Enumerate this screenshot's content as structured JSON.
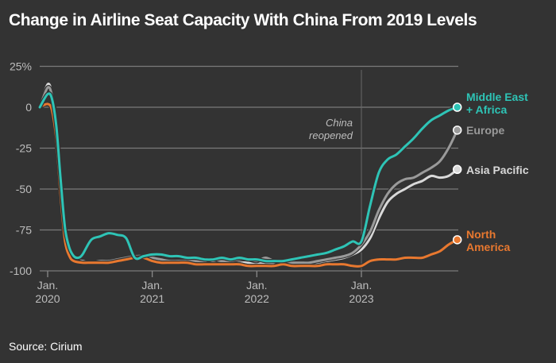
{
  "title": "Change in Airline Seat Capacity With China From 2019 Levels",
  "source": "Source: Cirium",
  "chart_data": {
    "type": "line",
    "title": "Change in Airline Seat Capacity With China From 2019 Levels",
    "xlabel": "",
    "ylabel": "",
    "x_unit": "months since Jan. 2020",
    "xlim": [
      -0.9,
      47
    ],
    "ylim": [
      -100,
      25
    ],
    "grid": true,
    "y_ticks": [
      {
        "value": 25,
        "label": "25%"
      },
      {
        "value": 0,
        "label": "0"
      },
      {
        "value": -25,
        "label": "-25"
      },
      {
        "value": -50,
        "label": "-50"
      },
      {
        "value": -75,
        "label": "-75"
      },
      {
        "value": -100,
        "label": "-100"
      }
    ],
    "x_ticks": [
      {
        "value": 0,
        "line1": "Jan.",
        "line2": "2020"
      },
      {
        "value": 12,
        "line1": "Jan.",
        "line2": "2021"
      },
      {
        "value": 24,
        "line1": "Jan.",
        "line2": "2022"
      },
      {
        "value": 36,
        "line1": "Jan.",
        "line2": "2023"
      }
    ],
    "annotations": [
      {
        "x": 36,
        "line1": "China",
        "line2": "reopened"
      }
    ],
    "legend": "direct-labels-right",
    "series": [
      {
        "name": "Asia Pacific",
        "label_lines": [
          "Asia Pacific"
        ],
        "color": "#d9d9d9",
        "points": [
          [
            -0.9,
            0
          ],
          [
            0,
            14
          ],
          [
            0.5,
            8
          ],
          [
            1,
            -10
          ],
          [
            1.5,
            -45
          ],
          [
            2,
            -75
          ],
          [
            2.5,
            -88
          ],
          [
            3,
            -93
          ],
          [
            4,
            -94
          ],
          [
            5,
            -95
          ],
          [
            6,
            -94
          ],
          [
            7,
            -94
          ],
          [
            8,
            -93
          ],
          [
            9,
            -92
          ],
          [
            10,
            -91
          ],
          [
            11,
            -91
          ],
          [
            12,
            -92
          ],
          [
            13,
            -93
          ],
          [
            14,
            -94
          ],
          [
            15,
            -94
          ],
          [
            16,
            -94
          ],
          [
            17,
            -95
          ],
          [
            18,
            -95
          ],
          [
            19,
            -94
          ],
          [
            20,
            -95
          ],
          [
            21,
            -95
          ],
          [
            22,
            -94
          ],
          [
            23,
            -95
          ],
          [
            24,
            -95
          ],
          [
            25,
            -96
          ],
          [
            26,
            -96
          ],
          [
            27,
            -95
          ],
          [
            28,
            -96
          ],
          [
            29,
            -96
          ],
          [
            30,
            -96
          ],
          [
            31,
            -95
          ],
          [
            32,
            -94
          ],
          [
            33,
            -93
          ],
          [
            34,
            -92
          ],
          [
            35,
            -90
          ],
          [
            36,
            -87
          ],
          [
            37,
            -80
          ],
          [
            38,
            -68
          ],
          [
            39,
            -58
          ],
          [
            40,
            -53
          ],
          [
            41,
            -50
          ],
          [
            42,
            -47
          ],
          [
            43,
            -45
          ],
          [
            44,
            -42
          ],
          [
            45,
            -43
          ],
          [
            46,
            -42
          ],
          [
            47,
            -38
          ]
        ]
      },
      {
        "name": "Europe",
        "label_lines": [
          "Europe"
        ],
        "color": "#9a9a9a",
        "points": [
          [
            -0.9,
            0
          ],
          [
            0,
            12
          ],
          [
            0.5,
            7
          ],
          [
            1,
            -10
          ],
          [
            1.5,
            -45
          ],
          [
            2,
            -75
          ],
          [
            2.5,
            -88
          ],
          [
            3,
            -93
          ],
          [
            4,
            -95
          ],
          [
            5,
            -95
          ],
          [
            6,
            -94
          ],
          [
            7,
            -94
          ],
          [
            8,
            -93
          ],
          [
            9,
            -92
          ],
          [
            10,
            -91
          ],
          [
            11,
            -91
          ],
          [
            12,
            -92
          ],
          [
            13,
            -93
          ],
          [
            14,
            -94
          ],
          [
            15,
            -94
          ],
          [
            16,
            -94
          ],
          [
            17,
            -94
          ],
          [
            18,
            -94
          ],
          [
            19,
            -93
          ],
          [
            20,
            -94
          ],
          [
            21,
            -94
          ],
          [
            22,
            -93
          ],
          [
            23,
            -93
          ],
          [
            24,
            -94
          ],
          [
            25,
            -92
          ],
          [
            26,
            -94
          ],
          [
            27,
            -95
          ],
          [
            28,
            -95
          ],
          [
            29,
            -95
          ],
          [
            30,
            -95
          ],
          [
            31,
            -94
          ],
          [
            32,
            -93
          ],
          [
            33,
            -92
          ],
          [
            34,
            -91
          ],
          [
            35,
            -89
          ],
          [
            36,
            -84
          ],
          [
            37,
            -76
          ],
          [
            38,
            -63
          ],
          [
            39,
            -53
          ],
          [
            40,
            -47
          ],
          [
            41,
            -44
          ],
          [
            42,
            -43
          ],
          [
            43,
            -40
          ],
          [
            44,
            -37
          ],
          [
            45,
            -33
          ],
          [
            46,
            -25
          ],
          [
            47,
            -14
          ]
        ]
      },
      {
        "name": "North America",
        "label_lines": [
          "North",
          "America"
        ],
        "color": "#e8782f",
        "points": [
          [
            -0.9,
            0
          ],
          [
            0,
            2
          ],
          [
            0.5,
            -2
          ],
          [
            1,
            -20
          ],
          [
            1.5,
            -55
          ],
          [
            2,
            -82
          ],
          [
            2.5,
            -91
          ],
          [
            3,
            -94
          ],
          [
            4,
            -95
          ],
          [
            5,
            -95
          ],
          [
            6,
            -95
          ],
          [
            7,
            -95
          ],
          [
            8,
            -94
          ],
          [
            9,
            -93
          ],
          [
            10,
            -92
          ],
          [
            11,
            -92
          ],
          [
            12,
            -94
          ],
          [
            13,
            -95
          ],
          [
            14,
            -95
          ],
          [
            15,
            -95
          ],
          [
            16,
            -95
          ],
          [
            17,
            -96
          ],
          [
            18,
            -96
          ],
          [
            19,
            -96
          ],
          [
            20,
            -96
          ],
          [
            21,
            -96
          ],
          [
            22,
            -96
          ],
          [
            23,
            -97
          ],
          [
            24,
            -97
          ],
          [
            25,
            -97
          ],
          [
            26,
            -97
          ],
          [
            27,
            -96
          ],
          [
            28,
            -97
          ],
          [
            29,
            -97
          ],
          [
            30,
            -97
          ],
          [
            31,
            -97
          ],
          [
            32,
            -96
          ],
          [
            33,
            -96
          ],
          [
            34,
            -96
          ],
          [
            35,
            -97
          ],
          [
            36,
            -97
          ],
          [
            37,
            -94
          ],
          [
            38,
            -93
          ],
          [
            39,
            -93
          ],
          [
            40,
            -93
          ],
          [
            41,
            -92
          ],
          [
            42,
            -92
          ],
          [
            43,
            -92
          ],
          [
            44,
            -90
          ],
          [
            45,
            -88
          ],
          [
            46,
            -84
          ],
          [
            47,
            -81
          ]
        ]
      },
      {
        "name": "Middle East + Africa",
        "label_lines": [
          "Middle East",
          "+ Africa"
        ],
        "color": "#2ec4b6",
        "points": [
          [
            -0.9,
            0
          ],
          [
            0,
            8
          ],
          [
            0.5,
            5
          ],
          [
            1,
            -12
          ],
          [
            1.5,
            -45
          ],
          [
            2,
            -74
          ],
          [
            2.5,
            -86
          ],
          [
            3,
            -91
          ],
          [
            3.5,
            -92
          ],
          [
            4,
            -90
          ],
          [
            5,
            -81
          ],
          [
            6,
            -79
          ],
          [
            7,
            -77
          ],
          [
            8,
            -78
          ],
          [
            9,
            -80
          ],
          [
            10,
            -92
          ],
          [
            11,
            -91
          ],
          [
            12,
            -90
          ],
          [
            13,
            -90
          ],
          [
            14,
            -91
          ],
          [
            15,
            -91
          ],
          [
            16,
            -92
          ],
          [
            17,
            -92
          ],
          [
            18,
            -93
          ],
          [
            19,
            -93
          ],
          [
            20,
            -92
          ],
          [
            21,
            -93
          ],
          [
            22,
            -92
          ],
          [
            23,
            -93
          ],
          [
            24,
            -93
          ],
          [
            25,
            -94
          ],
          [
            26,
            -94
          ],
          [
            27,
            -94
          ],
          [
            28,
            -93
          ],
          [
            29,
            -92
          ],
          [
            30,
            -91
          ],
          [
            31,
            -90
          ],
          [
            32,
            -89
          ],
          [
            33,
            -87
          ],
          [
            34,
            -85
          ],
          [
            35,
            -82
          ],
          [
            36,
            -82
          ],
          [
            37,
            -60
          ],
          [
            38,
            -40
          ],
          [
            39,
            -32
          ],
          [
            40,
            -29
          ],
          [
            41,
            -24
          ],
          [
            42,
            -19
          ],
          [
            43,
            -13
          ],
          [
            44,
            -8
          ],
          [
            45,
            -5
          ],
          [
            46,
            -2
          ],
          [
            47,
            0
          ]
        ]
      }
    ]
  }
}
